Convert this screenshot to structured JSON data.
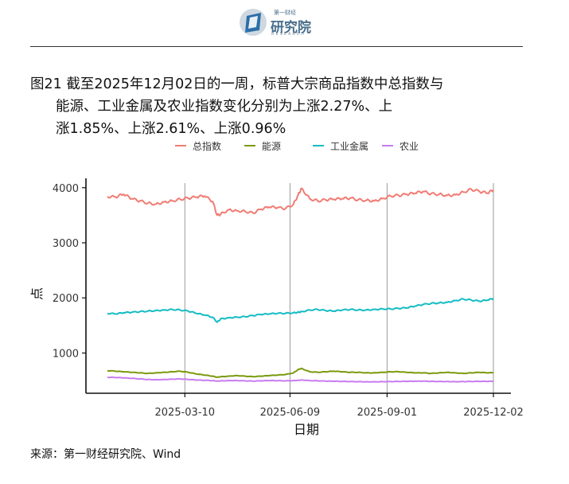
{
  "logo": {
    "brand": "第一财经",
    "title": "研究院",
    "subtitle": "RESEARCH"
  },
  "caption": {
    "line1": "图21  截至2025年12月02日的一周，标普大宗商品指数中总指数与",
    "line2": "能源、工业金属及农业指数变化分别为上涨2.27%、上",
    "line3": "涨1.85%、上涨2.61%、上涨0.96%"
  },
  "source": "来源：第一财经研究院、Wind",
  "colors": {
    "total": "#f07c74",
    "energy": "#7a9a0e",
    "metal": "#14bcc4",
    "agri": "#c77cf0"
  },
  "chart_data": {
    "type": "line",
    "xlabel": "日期",
    "ylabel": "点",
    "x_ticks": [
      "2025-03-10",
      "2025-06-09",
      "2025-09-01",
      "2025-12-02"
    ],
    "x_range": [
      "2025-01-02",
      "2025-12-02"
    ],
    "y_ticks": [
      1000,
      2000,
      3000,
      4000
    ],
    "ylim": [
      270,
      4170
    ],
    "grid": "vertical lines at x ticks",
    "legend_position": "top",
    "x": [
      "2025-01-02",
      "2025-01-09",
      "2025-01-16",
      "2025-01-23",
      "2025-01-30",
      "2025-02-06",
      "2025-02-13",
      "2025-02-20",
      "2025-02-27",
      "2025-03-06",
      "2025-03-13",
      "2025-03-20",
      "2025-03-27",
      "2025-04-03",
      "2025-04-07",
      "2025-04-10",
      "2025-04-17",
      "2025-04-24",
      "2025-05-01",
      "2025-05-08",
      "2025-05-15",
      "2025-05-22",
      "2025-05-29",
      "2025-06-05",
      "2025-06-12",
      "2025-06-16",
      "2025-06-19",
      "2025-06-26",
      "2025-07-03",
      "2025-07-10",
      "2025-07-17",
      "2025-07-24",
      "2025-07-31",
      "2025-08-07",
      "2025-08-14",
      "2025-08-21",
      "2025-08-28",
      "2025-09-04",
      "2025-09-11",
      "2025-09-18",
      "2025-09-25",
      "2025-10-02",
      "2025-10-09",
      "2025-10-16",
      "2025-10-23",
      "2025-10-30",
      "2025-11-06",
      "2025-11-13",
      "2025-11-20",
      "2025-11-27",
      "2025-12-02"
    ],
    "series": [
      {
        "name": "总指数",
        "color_key": "total",
        "values": [
          3840,
          3830,
          3880,
          3800,
          3760,
          3720,
          3700,
          3740,
          3760,
          3790,
          3810,
          3830,
          3850,
          3750,
          3500,
          3520,
          3600,
          3580,
          3570,
          3540,
          3610,
          3650,
          3640,
          3620,
          3700,
          3870,
          3990,
          3800,
          3760,
          3780,
          3790,
          3800,
          3810,
          3780,
          3770,
          3760,
          3800,
          3850,
          3860,
          3880,
          3900,
          3930,
          3890,
          3880,
          3860,
          3870,
          3920,
          3970,
          3930,
          3900,
          3960
        ]
      },
      {
        "name": "能源",
        "color_key": "energy",
        "values": [
          680,
          670,
          660,
          650,
          640,
          630,
          640,
          650,
          660,
          670,
          650,
          620,
          600,
          580,
          560,
          570,
          580,
          590,
          580,
          570,
          580,
          590,
          600,
          610,
          640,
          700,
          720,
          660,
          650,
          660,
          670,
          660,
          650,
          650,
          640,
          640,
          650,
          660,
          660,
          650,
          640,
          640,
          630,
          640,
          650,
          640,
          630,
          640,
          650,
          640,
          645
        ]
      },
      {
        "name": "工业金属",
        "color_key": "metal",
        "values": [
          1720,
          1710,
          1730,
          1740,
          1750,
          1760,
          1770,
          1780,
          1790,
          1780,
          1760,
          1720,
          1690,
          1650,
          1560,
          1620,
          1640,
          1650,
          1660,
          1680,
          1700,
          1710,
          1720,
          1720,
          1730,
          1740,
          1750,
          1780,
          1790,
          1770,
          1760,
          1780,
          1790,
          1780,
          1780,
          1790,
          1800,
          1800,
          1810,
          1820,
          1850,
          1880,
          1900,
          1910,
          1920,
          1950,
          1980,
          1960,
          1940,
          1960,
          1990
        ]
      },
      {
        "name": "农业",
        "color_key": "agri",
        "values": [
          560,
          555,
          550,
          540,
          530,
          520,
          515,
          520,
          525,
          530,
          520,
          510,
          505,
          500,
          490,
          495,
          500,
          500,
          495,
          490,
          495,
          500,
          498,
          495,
          500,
          505,
          510,
          500,
          495,
          490,
          488,
          485,
          482,
          480,
          478,
          478,
          480,
          482,
          484,
          486,
          488,
          490,
          486,
          484,
          482,
          480,
          482,
          484,
          486,
          485,
          488
        ]
      }
    ]
  }
}
